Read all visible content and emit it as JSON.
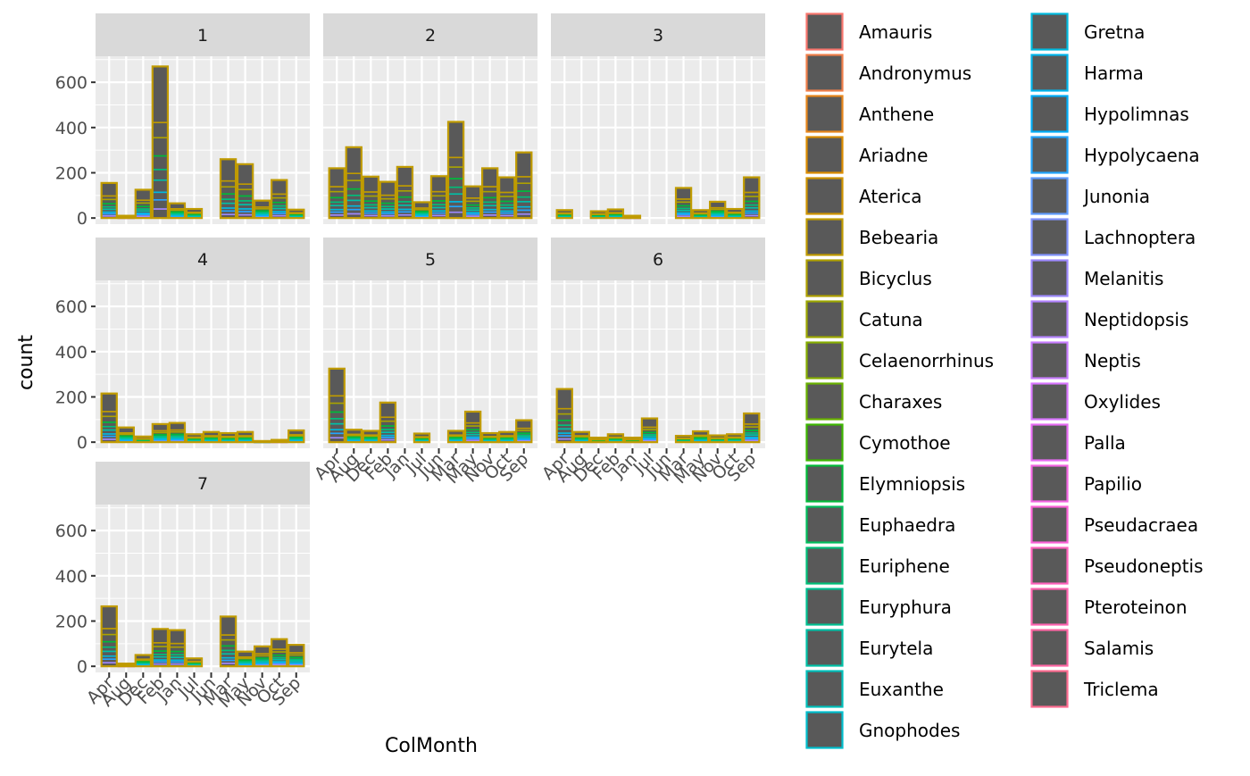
{
  "chart_data": {
    "type": "bar",
    "stacked": true,
    "facet_variable": "",
    "xlabel": "ColMonth",
    "ylabel": "count",
    "ylim": [
      0,
      700
    ],
    "y_ticks": [
      0,
      200,
      400,
      600
    ],
    "grid": true,
    "legend_placement": "right",
    "categories": [
      "Apr",
      "Aug",
      "Dec",
      "Feb",
      "Jan",
      "Jul",
      "Jun",
      "Mar",
      "May",
      "Nov",
      "Oct",
      "Sep"
    ],
    "legend_title": "",
    "legend": [
      {
        "name": "Amauris",
        "color": "#F8766D"
      },
      {
        "name": "Andronymus",
        "color": "#F07F4A"
      },
      {
        "name": "Anthene",
        "color": "#E7861B"
      },
      {
        "name": "Ariadne",
        "color": "#DC8D00"
      },
      {
        "name": "Aterica",
        "color": "#CF9400"
      },
      {
        "name": "Bebearia",
        "color": "#C09B00"
      },
      {
        "name": "Bicyclus",
        "color": "#AFA100"
      },
      {
        "name": "Catuna",
        "color": "#9CA700"
      },
      {
        "name": "Celaenorrhinus",
        "color": "#85AD00"
      },
      {
        "name": "Charaxes",
        "color": "#69B100"
      },
      {
        "name": "Cymothoe",
        "color": "#3DB600"
      },
      {
        "name": "Elymniopsis",
        "color": "#00BA38"
      },
      {
        "name": "Euphaedra",
        "color": "#00BD5C"
      },
      {
        "name": "Euriphene",
        "color": "#00BF78"
      },
      {
        "name": "Euryphura",
        "color": "#00C091"
      },
      {
        "name": "Eurytela",
        "color": "#00C1A7"
      },
      {
        "name": "Euxanthe",
        "color": "#00C0BB"
      },
      {
        "name": "Gnophodes",
        "color": "#00BECD"
      },
      {
        "name": "Gretna",
        "color": "#00BADE"
      },
      {
        "name": "Harma",
        "color": "#00B5EC"
      },
      {
        "name": "Hypolimnas",
        "color": "#00ADF8"
      },
      {
        "name": "Hypolycaena",
        "color": "#22A5FF"
      },
      {
        "name": "Junonia",
        "color": "#619CFF"
      },
      {
        "name": "Lachnoptera",
        "color": "#8294FF"
      },
      {
        "name": "Melanitis",
        "color": "#9D8AFF"
      },
      {
        "name": "Neptidopsis",
        "color": "#B383FF"
      },
      {
        "name": "Neptis",
        "color": "#C77CFF"
      },
      {
        "name": "Oxylides",
        "color": "#D875FF"
      },
      {
        "name": "Palla",
        "color": "#E76BF3"
      },
      {
        "name": "Papilio",
        "color": "#F264E2"
      },
      {
        "name": "Pseudacraea",
        "color": "#FB61D7"
      },
      {
        "name": "Pseudoneptis",
        "color": "#FF62BC"
      },
      {
        "name": "Pteroteinon",
        "color": "#FF64B0"
      },
      {
        "name": "Salamis",
        "color": "#FF67A4"
      },
      {
        "name": "Triclema",
        "color": "#FF6C91"
      }
    ],
    "panels": [
      {
        "label": "1",
        "totals": {
          "Apr": 155,
          "Aug": 10,
          "Dec": 125,
          "Feb": 670,
          "Jan": 65,
          "Jul": 40,
          "Jun": 0,
          "Mar": 260,
          "May": 238,
          "Nov": 77,
          "Oct": 168,
          "Sep": 37
        }
      },
      {
        "label": "2",
        "totals": {
          "Apr": 220,
          "Aug": 313,
          "Dec": 183,
          "Feb": 160,
          "Jan": 226,
          "Jul": 70,
          "Jun": 185,
          "Mar": 425,
          "May": 140,
          "Nov": 220,
          "Oct": 180,
          "Sep": 290
        }
      },
      {
        "label": "3",
        "totals": {
          "Apr": 35,
          "Aug": 0,
          "Dec": 30,
          "Feb": 38,
          "Jan": 10,
          "Jul": 0,
          "Jun": 0,
          "Mar": 133,
          "May": 35,
          "Nov": 72,
          "Oct": 40,
          "Sep": 180
        }
      },
      {
        "label": "4",
        "totals": {
          "Apr": 215,
          "Aug": 65,
          "Dec": 25,
          "Feb": 80,
          "Jan": 85,
          "Jul": 35,
          "Jun": 45,
          "Mar": 40,
          "May": 45,
          "Nov": 5,
          "Oct": 10,
          "Sep": 52
        }
      },
      {
        "label": "5",
        "totals": {
          "Apr": 325,
          "Aug": 55,
          "Dec": 50,
          "Feb": 175,
          "Jan": 0,
          "Jul": 38,
          "Jun": 0,
          "Mar": 50,
          "May": 135,
          "Nov": 40,
          "Oct": 45,
          "Sep": 97
        }
      },
      {
        "label": "6",
        "totals": {
          "Apr": 235,
          "Aug": 45,
          "Dec": 20,
          "Feb": 35,
          "Jan": 20,
          "Jul": 105,
          "Jun": 0,
          "Mar": 28,
          "May": 48,
          "Nov": 30,
          "Oct": 35,
          "Sep": 127
        }
      },
      {
        "label": "7",
        "totals": {
          "Apr": 265,
          "Aug": 12,
          "Dec": 50,
          "Feb": 165,
          "Jan": 160,
          "Jul": 35,
          "Jun": 0,
          "Mar": 220,
          "May": 65,
          "Nov": 88,
          "Oct": 120,
          "Sep": 95
        }
      }
    ]
  }
}
